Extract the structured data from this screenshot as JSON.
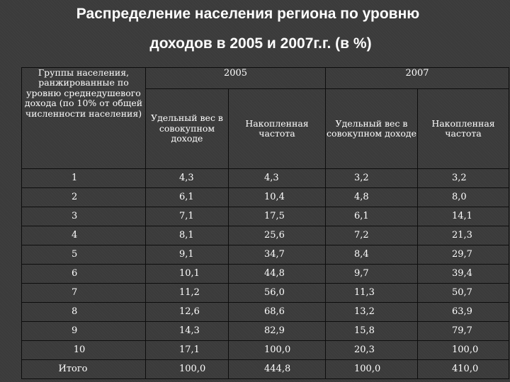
{
  "title_line1": "Распределение населения региона по уровню",
  "title_line2": "доходов в 2005 и 2007г.г. (в %)",
  "table": {
    "group_header": "Группы населения, ранжированные по уровню среднедушевого дохода (по 10% от общей численности населения)",
    "year1": "2005",
    "year2": "2007",
    "sub_share": "Удельный вес в совокупном доходе",
    "sub_cumulative": "Накопленная частота",
    "rows": [
      [
        "1",
        "4,3",
        "4,3",
        "3,2",
        "3,2"
      ],
      [
        "2",
        "6,1",
        "10,4",
        "4,8",
        "8,0"
      ],
      [
        "3",
        "7,1",
        "17,5",
        "6,1",
        "14,1"
      ],
      [
        "4",
        "8,1",
        "25,6",
        "7,2",
        "21,3"
      ],
      [
        "5",
        "9,1",
        "34,7",
        "8,4",
        "29,7"
      ],
      [
        "6",
        "10,1",
        "44,8",
        "9,7",
        "39,4"
      ],
      [
        "7",
        "11,2",
        "56,0",
        "11,3",
        "50,7"
      ],
      [
        "8",
        "12,6",
        "68,6",
        "13,2",
        "63,9"
      ],
      [
        "9",
        "14,3",
        "82,9",
        "15,8",
        "79,7"
      ],
      [
        "10",
        "17,1",
        "100,0",
        "20,3",
        "100,0"
      ],
      [
        "Итого",
        "100,0",
        "444,8",
        "100,0",
        "410,0"
      ]
    ]
  }
}
